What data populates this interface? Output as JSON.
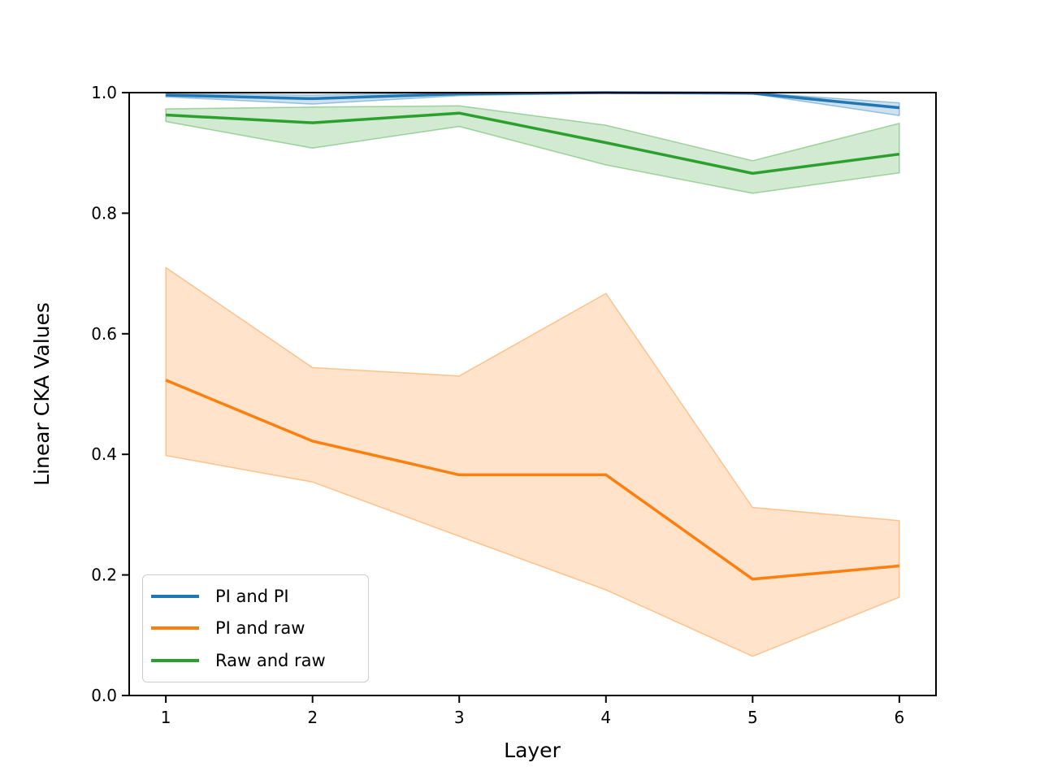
{
  "chart_data": {
    "type": "line",
    "title": "",
    "xlabel": "Layer",
    "ylabel": "Linear CKA Values",
    "x": [
      1,
      2,
      3,
      4,
      5,
      6
    ],
    "xtick_labels": [
      "1",
      "2",
      "3",
      "4",
      "5",
      "6"
    ],
    "ytick_values": [
      0.0,
      0.2,
      0.4,
      0.6,
      0.8,
      1.0
    ],
    "ytick_labels": [
      "0.0",
      "0.2",
      "0.4",
      "0.6",
      "0.8",
      "1.0"
    ],
    "xlim": [
      0.75,
      6.25
    ],
    "ylim": [
      0.0,
      1.0
    ],
    "grid": false,
    "legend_position": "lower left",
    "series": [
      {
        "name": "PI and PI",
        "color": "#1f77b4",
        "values": [
          0.996,
          0.99,
          0.998,
          1.0,
          0.999,
          0.975
        ],
        "band_upper": [
          0.998,
          0.996,
          1.0,
          1.0,
          1.0,
          0.983
        ],
        "band_lower": [
          0.993,
          0.981,
          0.995,
          0.999,
          0.998,
          0.962
        ]
      },
      {
        "name": "PI and raw",
        "color": "#ff7f0e",
        "values": [
          0.523,
          0.422,
          0.366,
          0.366,
          0.193,
          0.215
        ],
        "band_upper": [
          0.71,
          0.544,
          0.53,
          0.667,
          0.312,
          0.29
        ],
        "band_lower": [
          0.398,
          0.354,
          0.264,
          0.175,
          0.065,
          0.163
        ]
      },
      {
        "name": "Raw and raw",
        "color": "#2ca02c",
        "values": [
          0.963,
          0.95,
          0.966,
          0.917,
          0.866,
          0.898
        ],
        "band_upper": [
          0.973,
          0.976,
          0.978,
          0.946,
          0.887,
          0.949
        ],
        "band_lower": [
          0.952,
          0.908,
          0.944,
          0.88,
          0.833,
          0.867
        ]
      }
    ]
  }
}
